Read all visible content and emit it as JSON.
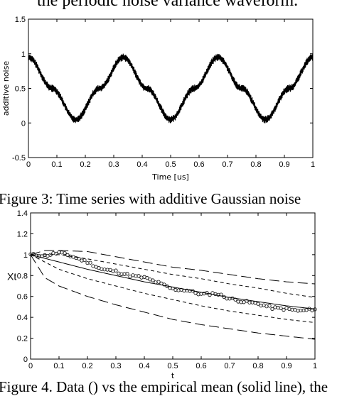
{
  "page": {
    "intro_text": "the periodic noise variance waveform.",
    "figure3_caption": "Figure 3: Time series with additive Gaussian noise",
    "figure4_caption": "Figure 4. Data () vs the empirical mean (solid line), the"
  },
  "chart_data": [
    {
      "type": "line",
      "title": "",
      "xlabel": "Time [us]",
      "ylabel": "additive noise",
      "xlim": [
        0,
        1
      ],
      "ylim": [
        -0.5,
        1.5
      ],
      "xticks": [
        "0",
        "0.1",
        "0.2",
        "0.3",
        "0.4",
        "0.5",
        "0.6",
        "0.7",
        "0.8",
        "0.9",
        "1"
      ],
      "yticks": [
        "-0.5",
        "0",
        "0.5",
        "1",
        "1.5"
      ],
      "grid": false,
      "series": [
        {
          "x": [
            0,
            0.0833,
            0.1667,
            0.25,
            0.3333,
            0.4167,
            0.5,
            0.5833,
            0.6667,
            0.75,
            0.8333,
            0.9167,
            1
          ],
          "y": [
            0.95,
            0.5,
            0.05,
            0.5,
            0.95,
            0.5,
            0.05,
            0.5,
            0.95,
            0.5,
            0.05,
            0.5,
            0.95
          ],
          "style": "solid with high-frequency noise"
        }
      ]
    },
    {
      "type": "line",
      "title": "",
      "xlabel": "t",
      "ylabel": "Xt",
      "xlim": [
        0,
        1
      ],
      "ylim": [
        0,
        1.4
      ],
      "xticks": [
        "0",
        "0.1",
        "0.2",
        "0.3",
        "0.4",
        "0.5",
        "0.6",
        "0.7",
        "0.8",
        "0.9",
        "1"
      ],
      "yticks": [
        "0",
        "0.2",
        "0.4",
        "0.6",
        "0.8",
        "1",
        "1.2",
        "1.4"
      ],
      "grid": false,
      "series": [
        {
          "style": "markers-circle",
          "x": [
            0,
            0.05,
            0.1,
            0.15,
            0.2,
            0.25,
            0.3,
            0.35,
            0.4,
            0.45,
            0.5,
            0.55,
            0.6,
            0.65,
            0.7,
            0.75,
            0.8,
            0.85,
            0.9,
            0.95,
            1
          ],
          "y": [
            1.0,
            0.99,
            1.02,
            0.98,
            0.93,
            0.86,
            0.84,
            0.8,
            0.78,
            0.73,
            0.67,
            0.66,
            0.62,
            0.63,
            0.58,
            0.55,
            0.53,
            0.49,
            0.48,
            0.46,
            0.48
          ]
        },
        {
          "style": "solid",
          "x": [
            0,
            0.1,
            0.2,
            0.3,
            0.4,
            0.5,
            0.6,
            0.7,
            0.8,
            0.9,
            1
          ],
          "y": [
            1.0,
            0.93,
            0.86,
            0.8,
            0.74,
            0.69,
            0.64,
            0.59,
            0.55,
            0.51,
            0.48
          ]
        },
        {
          "style": "dashed-short",
          "x": [
            0,
            0.1,
            0.2,
            0.3,
            0.4,
            0.5,
            0.6,
            0.7,
            0.8,
            0.9,
            1
          ],
          "y": [
            1.0,
            1.0,
            0.96,
            0.91,
            0.86,
            0.81,
            0.77,
            0.72,
            0.68,
            0.63,
            0.59
          ]
        },
        {
          "style": "dashed-short",
          "x": [
            0,
            0.1,
            0.2,
            0.3,
            0.4,
            0.5,
            0.6,
            0.7,
            0.8,
            0.9,
            1
          ],
          "y": [
            1.0,
            0.86,
            0.77,
            0.7,
            0.63,
            0.57,
            0.51,
            0.46,
            0.42,
            0.38,
            0.35
          ]
        },
        {
          "style": "dashed-long",
          "x": [
            0,
            0.05,
            0.1,
            0.2,
            0.3,
            0.4,
            0.5,
            0.6,
            0.7,
            0.8,
            0.9,
            1
          ],
          "y": [
            1.0,
            1.04,
            1.04,
            1.03,
            0.98,
            0.93,
            0.88,
            0.85,
            0.81,
            0.77,
            0.74,
            0.72
          ]
        },
        {
          "style": "dashed-long",
          "x": [
            0,
            0.05,
            0.1,
            0.2,
            0.3,
            0.4,
            0.5,
            0.6,
            0.7,
            0.8,
            0.9,
            1
          ],
          "y": [
            1.0,
            0.78,
            0.7,
            0.6,
            0.52,
            0.45,
            0.38,
            0.33,
            0.29,
            0.25,
            0.22,
            0.19
          ]
        }
      ]
    }
  ]
}
